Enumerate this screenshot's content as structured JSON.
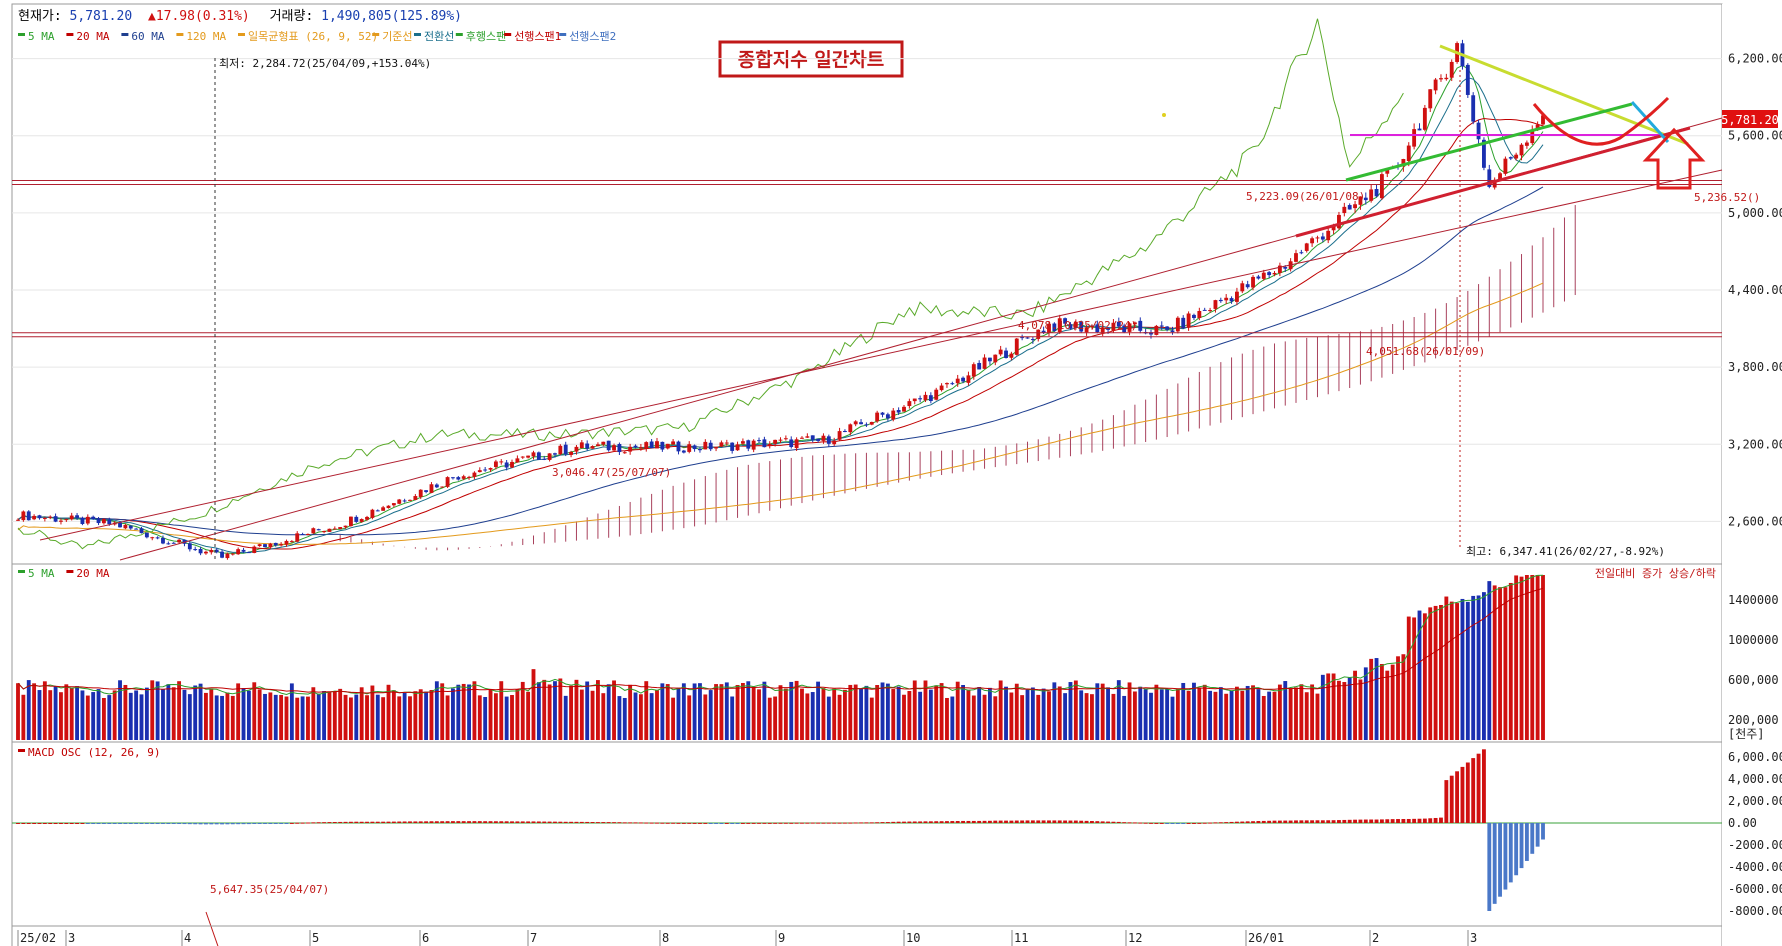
{
  "header": {
    "price_label": "현재가: ",
    "price_value": "5,781.20",
    "change_arrow": "▲",
    "change_value": "17.98(0.31%)",
    "volume_label": "거래량: ",
    "volume_value": "1,490,805(125.89%)"
  },
  "price_legend": [
    {
      "label": "5 MA",
      "color": "#2ca02c"
    },
    {
      "label": "20 MA",
      "color": "#c00000"
    },
    {
      "label": "60 MA",
      "color": "#1f3f8f"
    },
    {
      "label": "120 MA",
      "color": "#e39a1c"
    },
    {
      "label": "일목균형표 (26, 9, 52)",
      "color": "#e39a1c"
    },
    {
      "label": "기준선",
      "color": "#e39a1c"
    },
    {
      "label": "전환선",
      "color": "#1b6f8c"
    },
    {
      "label": "후행스팬",
      "color": "#2ca02c"
    },
    {
      "label": "선행스팬1",
      "color": "#c00000"
    },
    {
      "label": "선행스팬2",
      "color": "#3f6fbf"
    }
  ],
  "volume_legend": [
    {
      "label": "5 MA",
      "color": "#2ca02c"
    },
    {
      "label": "20 MA",
      "color": "#c00000"
    }
  ],
  "macd_legend": [
    {
      "label": "MACD OSC (12, 26, 9)",
      "color": "#c00000"
    }
  ],
  "chart_title": "종합지수 일간차트",
  "price_tag": "5,781.20",
  "volume_note": "전일대비 증가 상승/하락",
  "volume_unit": "[천주]",
  "annotations": {
    "low": "최저: 2,284.72(25/04/09,+153.04%)",
    "high": "최고: 6,347.41(26/02/27,-8.92%)",
    "level_5236": "5,236.52()",
    "mid_a": "4,078.10(25/02/24)",
    "mid_b": "3,046.47(25/07/07)",
    "macd_low": "5,647.35(25/04/07)",
    "level_4051": "4,051.68(26/01/09)",
    "level_5223": "5,223.09(26/01/08)"
  },
  "colors": {
    "up": "#d01010",
    "down": "#1a2fb0",
    "macd_down": "#4a78c8",
    "cloud": "#9a2040",
    "trend": "#b02030",
    "magenta": "#dd22dd",
    "yellowgreen": "#c8dc30",
    "green": "#33bb33",
    "cyan": "#22aadd",
    "price_tag_bg": "#e01010"
  },
  "chart_data": [
    {
      "type": "candlestick",
      "title": "종합지수 일간차트",
      "x_ticks": [
        "25/02",
        "3",
        "4",
        "5",
        "6",
        "7",
        "8",
        "9",
        "10",
        "11",
        "12",
        "26/01",
        "2",
        "3"
      ],
      "y_ticks": [
        "6,200.00",
        "5,600.00",
        "5,000.00",
        "4,400.00",
        "3,800.00",
        "3,200.00",
        "2,600.00"
      ],
      "ylim": [
        2300,
        6500
      ],
      "key_points": [
        {
          "date": "25/02",
          "close": 2650
        },
        {
          "date": "3",
          "close": 2580
        },
        {
          "date": "4",
          "close": 2320
        },
        {
          "date": "5",
          "close": 2580
        },
        {
          "date": "6",
          "close": 2960
        },
        {
          "date": "7",
          "close": 3180
        },
        {
          "date": "8",
          "close": 3180
        },
        {
          "date": "9",
          "close": 3230
        },
        {
          "date": "10",
          "close": 3620
        },
        {
          "date": "11",
          "close": 4130
        },
        {
          "date": "12",
          "close": 4080
        },
        {
          "date": "26/01",
          "close": 4600
        },
        {
          "date": "2",
          "close": 5300
        },
        {
          "date": "2/27",
          "close": 6300
        },
        {
          "date": "3",
          "close": 5200
        },
        {
          "date": "now",
          "close": 5781.2
        }
      ],
      "levels": [
        6200,
        5600,
        5236.52,
        4051.68,
        3800,
        3200,
        2600
      ]
    },
    {
      "type": "bar",
      "title": "",
      "y_ticks": [
        "1400000",
        "1000000",
        "600,000",
        "200,000"
      ],
      "ylim": [
        0,
        1700000
      ]
    },
    {
      "type": "bar",
      "title": "MACD OSC (12, 26, 9)",
      "y_ticks": [
        "6,000.00",
        "4,000.00",
        "2,000.00",
        "0.00",
        "-2000.00",
        "-4000.00",
        "-6000.00",
        "-8000.00"
      ],
      "ylim": [
        -9000,
        7000
      ]
    }
  ]
}
